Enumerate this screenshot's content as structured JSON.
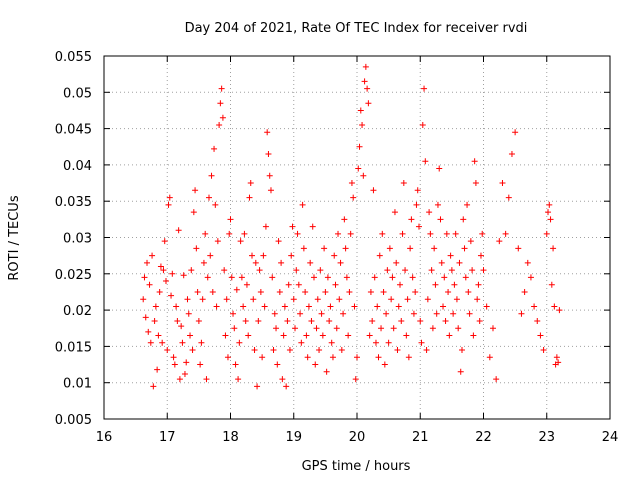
{
  "chart_data": {
    "type": "scatter",
    "title": "Day 204 of 2021, Rate Of TEC Index for receiver rvdi",
    "xlabel": "GPS time / hours",
    "ylabel": "ROTI / TECUs",
    "xlim": [
      16,
      24
    ],
    "ylim": [
      0.005,
      0.055
    ],
    "x_ticks": [
      16,
      17,
      18,
      19,
      20,
      21,
      22,
      23,
      24
    ],
    "y_ticks": [
      0.005,
      0.01,
      0.015,
      0.02,
      0.025,
      0.03,
      0.035,
      0.04,
      0.045,
      0.05,
      0.055
    ],
    "x_tick_labels": [
      "16",
      "17",
      "18",
      "19",
      "20",
      "21",
      "22",
      "23",
      "24"
    ],
    "y_tick_labels": [
      "0.005",
      "0.01",
      "0.015",
      "0.02",
      "0.025",
      "0.03",
      "0.035",
      "0.04",
      "0.045",
      "0.05",
      "0.055"
    ],
    "grid": true,
    "marker": "+",
    "color": "#ff0000",
    "series": [
      {
        "points": [
          [
            16.62,
            0.0215
          ],
          [
            16.64,
            0.0245
          ],
          [
            16.66,
            0.019
          ],
          [
            16.68,
            0.0265
          ],
          [
            16.7,
            0.017
          ],
          [
            16.72,
            0.0235
          ],
          [
            16.74,
            0.0155
          ],
          [
            16.76,
            0.0275
          ],
          [
            16.78,
            0.0095
          ],
          [
            16.8,
            0.0185
          ],
          [
            16.82,
            0.0205
          ],
          [
            16.84,
            0.0118
          ],
          [
            16.86,
            0.0165
          ],
          [
            16.88,
            0.0225
          ],
          [
            16.9,
            0.026
          ],
          [
            16.92,
            0.0155
          ],
          [
            16.94,
            0.0255
          ],
          [
            16.96,
            0.0295
          ],
          [
            16.98,
            0.024
          ],
          [
            17.0,
            0.0145
          ],
          [
            17.02,
            0.0345
          ],
          [
            17.04,
            0.0355
          ],
          [
            17.06,
            0.022
          ],
          [
            17.08,
            0.025
          ],
          [
            17.1,
            0.0135
          ],
          [
            17.12,
            0.0125
          ],
          [
            17.14,
            0.0205
          ],
          [
            17.16,
            0.0185
          ],
          [
            17.18,
            0.031
          ],
          [
            17.2,
            0.0105
          ],
          [
            17.22,
            0.0178
          ],
          [
            17.24,
            0.0155
          ],
          [
            17.26,
            0.0248
          ],
          [
            17.28,
            0.0112
          ],
          [
            17.3,
            0.0128
          ],
          [
            17.32,
            0.0215
          ],
          [
            17.34,
            0.0195
          ],
          [
            17.36,
            0.0165
          ],
          [
            17.38,
            0.0255
          ],
          [
            17.4,
            0.0145
          ],
          [
            17.42,
            0.0335
          ],
          [
            17.44,
            0.0365
          ],
          [
            17.46,
            0.0285
          ],
          [
            17.48,
            0.0225
          ],
          [
            17.5,
            0.0185
          ],
          [
            17.52,
            0.0125
          ],
          [
            17.54,
            0.0155
          ],
          [
            17.56,
            0.0215
          ],
          [
            17.58,
            0.0265
          ],
          [
            17.6,
            0.0305
          ],
          [
            17.62,
            0.0105
          ],
          [
            17.64,
            0.0245
          ],
          [
            17.66,
            0.0355
          ],
          [
            17.68,
            0.0275
          ],
          [
            17.7,
            0.0385
          ],
          [
            17.72,
            0.0225
          ],
          [
            17.74,
            0.0422
          ],
          [
            17.76,
            0.0345
          ],
          [
            17.78,
            0.0205
          ],
          [
            17.8,
            0.0295
          ],
          [
            17.82,
            0.0455
          ],
          [
            17.84,
            0.0485
          ],
          [
            17.86,
            0.0505
          ],
          [
            17.88,
            0.0465
          ],
          [
            17.9,
            0.0255
          ],
          [
            17.92,
            0.0165
          ],
          [
            17.94,
            0.0215
          ],
          [
            17.96,
            0.0135
          ],
          [
            17.98,
            0.0305
          ],
          [
            18.0,
            0.0325
          ],
          [
            18.02,
            0.0245
          ],
          [
            18.04,
            0.0195
          ],
          [
            18.06,
            0.0175
          ],
          [
            18.08,
            0.0125
          ],
          [
            18.1,
            0.0228
          ],
          [
            18.12,
            0.0105
          ],
          [
            18.14,
            0.0155
          ],
          [
            18.16,
            0.0295
          ],
          [
            18.18,
            0.0245
          ],
          [
            18.2,
            0.0205
          ],
          [
            18.22,
            0.0305
          ],
          [
            18.24,
            0.0185
          ],
          [
            18.26,
            0.0235
          ],
          [
            18.28,
            0.0165
          ],
          [
            18.3,
            0.0355
          ],
          [
            18.32,
            0.0375
          ],
          [
            18.34,
            0.0275
          ],
          [
            18.36,
            0.0215
          ],
          [
            18.38,
            0.0145
          ],
          [
            18.4,
            0.0265
          ],
          [
            18.42,
            0.0095
          ],
          [
            18.44,
            0.0185
          ],
          [
            18.46,
            0.0255
          ],
          [
            18.48,
            0.0225
          ],
          [
            18.5,
            0.0135
          ],
          [
            18.52,
            0.0275
          ],
          [
            18.54,
            0.0205
          ],
          [
            18.56,
            0.0315
          ],
          [
            18.58,
            0.0445
          ],
          [
            18.6,
            0.0415
          ],
          [
            18.62,
            0.0385
          ],
          [
            18.64,
            0.0365
          ],
          [
            18.66,
            0.0245
          ],
          [
            18.68,
            0.0145
          ],
          [
            18.7,
            0.0195
          ],
          [
            18.72,
            0.0175
          ],
          [
            18.74,
            0.0125
          ],
          [
            18.76,
            0.0295
          ],
          [
            18.78,
            0.0225
          ],
          [
            18.8,
            0.0265
          ],
          [
            18.82,
            0.0105
          ],
          [
            18.84,
            0.0165
          ],
          [
            18.86,
            0.0205
          ],
          [
            18.88,
            0.0095
          ],
          [
            18.9,
            0.0185
          ],
          [
            18.92,
            0.0235
          ],
          [
            18.94,
            0.0145
          ],
          [
            18.96,
            0.0275
          ],
          [
            18.98,
            0.0315
          ],
          [
            19.0,
            0.0215
          ],
          [
            19.02,
            0.0175
          ],
          [
            19.04,
            0.0255
          ],
          [
            19.06,
            0.0305
          ],
          [
            19.08,
            0.0235
          ],
          [
            19.1,
            0.0195
          ],
          [
            19.12,
            0.0155
          ],
          [
            19.14,
            0.0345
          ],
          [
            19.16,
            0.0285
          ],
          [
            19.18,
            0.0225
          ],
          [
            19.2,
            0.0165
          ],
          [
            19.22,
            0.0135
          ],
          [
            19.24,
            0.0205
          ],
          [
            19.26,
            0.0265
          ],
          [
            19.28,
            0.0185
          ],
          [
            19.3,
            0.0315
          ],
          [
            19.32,
            0.0245
          ],
          [
            19.34,
            0.0125
          ],
          [
            19.36,
            0.0175
          ],
          [
            19.38,
            0.0215
          ],
          [
            19.4,
            0.0145
          ],
          [
            19.42,
            0.0255
          ],
          [
            19.44,
            0.0195
          ],
          [
            19.46,
            0.0165
          ],
          [
            19.48,
            0.0285
          ],
          [
            19.5,
            0.0225
          ],
          [
            19.52,
            0.0115
          ],
          [
            19.54,
            0.0245
          ],
          [
            19.56,
            0.0185
          ],
          [
            19.58,
            0.0205
          ],
          [
            19.6,
            0.0155
          ],
          [
            19.62,
            0.0135
          ],
          [
            19.64,
            0.0275
          ],
          [
            19.66,
            0.0235
          ],
          [
            19.68,
            0.0175
          ],
          [
            19.7,
            0.0305
          ],
          [
            19.72,
            0.0215
          ],
          [
            19.74,
            0.0265
          ],
          [
            19.76,
            0.0145
          ],
          [
            19.78,
            0.0195
          ],
          [
            19.8,
            0.0325
          ],
          [
            19.82,
            0.0285
          ],
          [
            19.84,
            0.0245
          ],
          [
            19.86,
            0.0165
          ],
          [
            19.88,
            0.0225
          ],
          [
            19.9,
            0.0305
          ],
          [
            19.92,
            0.0375
          ],
          [
            19.94,
            0.0355
          ],
          [
            19.96,
            0.0205
          ],
          [
            19.98,
            0.0105
          ],
          [
            20.0,
            0.0135
          ],
          [
            20.02,
            0.0395
          ],
          [
            20.04,
            0.0425
          ],
          [
            20.06,
            0.0475
          ],
          [
            20.08,
            0.0455
          ],
          [
            20.1,
            0.0385
          ],
          [
            20.12,
            0.0515
          ],
          [
            20.14,
            0.0535
          ],
          [
            20.16,
            0.0505
          ],
          [
            20.18,
            0.0485
          ],
          [
            20.2,
            0.0165
          ],
          [
            20.22,
            0.0225
          ],
          [
            20.24,
            0.0185
          ],
          [
            20.26,
            0.0365
          ],
          [
            20.28,
            0.0245
          ],
          [
            20.3,
            0.0155
          ],
          [
            20.32,
            0.0205
          ],
          [
            20.34,
            0.0135
          ],
          [
            20.36,
            0.0275
          ],
          [
            20.38,
            0.0175
          ],
          [
            20.4,
            0.0305
          ],
          [
            20.42,
            0.0225
          ],
          [
            20.44,
            0.0125
          ],
          [
            20.46,
            0.0195
          ],
          [
            20.48,
            0.0255
          ],
          [
            20.5,
            0.0155
          ],
          [
            20.52,
            0.0285
          ],
          [
            20.54,
            0.0215
          ],
          [
            20.56,
            0.0245
          ],
          [
            20.58,
            0.0175
          ],
          [
            20.6,
            0.0335
          ],
          [
            20.62,
            0.0265
          ],
          [
            20.64,
            0.0145
          ],
          [
            20.66,
            0.0205
          ],
          [
            20.68,
            0.0235
          ],
          [
            20.7,
            0.0185
          ],
          [
            20.72,
            0.0305
          ],
          [
            20.74,
            0.0375
          ],
          [
            20.76,
            0.0255
          ],
          [
            20.78,
            0.0165
          ],
          [
            20.8,
            0.0215
          ],
          [
            20.82,
            0.0135
          ],
          [
            20.84,
            0.0285
          ],
          [
            20.86,
            0.0325
          ],
          [
            20.88,
            0.0245
          ],
          [
            20.9,
            0.0195
          ],
          [
            20.92,
            0.0225
          ],
          [
            20.94,
            0.0345
          ],
          [
            20.96,
            0.0365
          ],
          [
            20.98,
            0.0315
          ],
          [
            21.0,
            0.0185
          ],
          [
            21.02,
            0.0155
          ],
          [
            21.04,
            0.0455
          ],
          [
            21.06,
            0.0505
          ],
          [
            21.08,
            0.0405
          ],
          [
            21.1,
            0.0145
          ],
          [
            21.12,
            0.0215
          ],
          [
            21.14,
            0.0335
          ],
          [
            21.16,
            0.0305
          ],
          [
            21.18,
            0.0255
          ],
          [
            21.2,
            0.0175
          ],
          [
            21.22,
            0.0285
          ],
          [
            21.24,
            0.0235
          ],
          [
            21.26,
            0.0195
          ],
          [
            21.28,
            0.0345
          ],
          [
            21.3,
            0.0395
          ],
          [
            21.32,
            0.0325
          ],
          [
            21.34,
            0.0265
          ],
          [
            21.36,
            0.0205
          ],
          [
            21.38,
            0.0245
          ],
          [
            21.4,
            0.0185
          ],
          [
            21.42,
            0.0305
          ],
          [
            21.44,
            0.0225
          ],
          [
            21.46,
            0.0165
          ],
          [
            21.48,
            0.0275
          ],
          [
            21.5,
            0.0255
          ],
          [
            21.52,
            0.0195
          ],
          [
            21.54,
            0.0235
          ],
          [
            21.56,
            0.0305
          ],
          [
            21.58,
            0.0215
          ],
          [
            21.6,
            0.0175
          ],
          [
            21.62,
            0.0265
          ],
          [
            21.64,
            0.0115
          ],
          [
            21.66,
            0.0145
          ],
          [
            21.68,
            0.0325
          ],
          [
            21.7,
            0.0285
          ],
          [
            21.72,
            0.0245
          ],
          [
            21.74,
            0.0345
          ],
          [
            21.76,
            0.0225
          ],
          [
            21.78,
            0.0195
          ],
          [
            21.8,
            0.0295
          ],
          [
            21.82,
            0.0255
          ],
          [
            21.84,
            0.0165
          ],
          [
            21.86,
            0.0405
          ],
          [
            21.88,
            0.0375
          ],
          [
            21.9,
            0.0215
          ],
          [
            21.92,
            0.0235
          ],
          [
            21.94,
            0.0185
          ],
          [
            21.96,
            0.0275
          ],
          [
            21.98,
            0.0305
          ],
          [
            22.0,
            0.0255
          ],
          [
            22.05,
            0.0205
          ],
          [
            22.1,
            0.0135
          ],
          [
            22.15,
            0.0175
          ],
          [
            22.2,
            0.0105
          ],
          [
            22.25,
            0.0295
          ],
          [
            22.3,
            0.0375
          ],
          [
            22.35,
            0.0305
          ],
          [
            22.4,
            0.0355
          ],
          [
            22.45,
            0.0415
          ],
          [
            22.5,
            0.0445
          ],
          [
            22.55,
            0.0285
          ],
          [
            22.6,
            0.0195
          ],
          [
            22.65,
            0.0225
          ],
          [
            22.7,
            0.0265
          ],
          [
            22.75,
            0.0245
          ],
          [
            22.8,
            0.0205
          ],
          [
            22.85,
            0.0185
          ],
          [
            22.9,
            0.0165
          ],
          [
            22.95,
            0.0145
          ],
          [
            23.0,
            0.0305
          ],
          [
            23.02,
            0.0335
          ],
          [
            23.04,
            0.0345
          ],
          [
            23.06,
            0.0325
          ],
          [
            23.08,
            0.0235
          ],
          [
            23.1,
            0.0285
          ],
          [
            23.12,
            0.0205
          ],
          [
            23.14,
            0.0125
          ],
          [
            23.16,
            0.0135
          ],
          [
            23.18,
            0.0128
          ],
          [
            23.2,
            0.02
          ]
        ]
      }
    ]
  }
}
